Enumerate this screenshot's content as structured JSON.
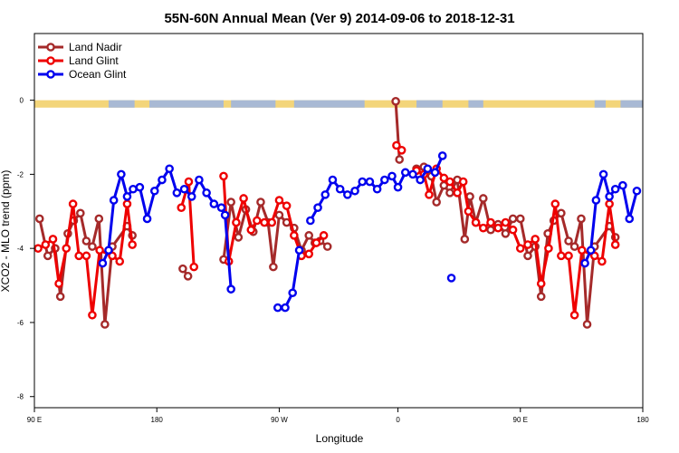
{
  "chart_data": {
    "type": "line",
    "title": "55N-60N Annual Mean (Ver 9)   2014-09-06 to 2018-12-31",
    "xlabel": "Longitude",
    "ylabel": "XCO2 - MLO trend (ppm)",
    "xlim": [
      0,
      8.2
    ],
    "ylim": [
      -8.3,
      1.8
    ],
    "x_ticks": [
      {
        "value": 0,
        "label": "90 E"
      },
      {
        "value": 1.65,
        "label": "180"
      },
      {
        "value": 3.3,
        "label": "90 W"
      },
      {
        "value": 4.9,
        "label": "0"
      },
      {
        "value": 6.55,
        "label": "90 E"
      },
      {
        "value": 8.2,
        "label": "180"
      }
    ],
    "y_ticks": [
      0,
      -2,
      -4,
      -6,
      -8
    ],
    "y_tick_labels": [
      "0",
      "-2",
      "-4",
      "-6",
      "-8"
    ],
    "legend_position": "top-left",
    "band": {
      "y_top": 0.0,
      "y_bottom": -0.2,
      "land_color": "#f3d57a",
      "ocean_color": "#a8b9d4"
    },
    "series": [
      {
        "name": "Land Nadir",
        "color": "#a52a2a",
        "segments": [
          [
            [
              0.07,
              -3.2
            ],
            [
              0.18,
              -4.2
            ],
            [
              0.28,
              -4.0
            ],
            [
              0.35,
              -5.3
            ],
            [
              0.45,
              -3.6
            ],
            [
              0.53,
              -3.25
            ],
            [
              0.62,
              -3.05
            ],
            [
              0.7,
              -3.8
            ],
            [
              0.78,
              -3.95
            ],
            [
              0.87,
              -3.2
            ],
            [
              0.95,
              -6.05
            ],
            [
              1.05,
              -3.95
            ],
            [
              1.25,
              -3.4
            ],
            [
              1.32,
              -3.65
            ]
          ],
          [
            [
              2.0,
              -4.55
            ],
            [
              2.07,
              -4.75
            ]
          ],
          [
            [
              2.55,
              -4.3
            ],
            [
              2.65,
              -2.75
            ],
            [
              2.75,
              -3.7
            ],
            [
              2.85,
              -2.95
            ],
            [
              2.95,
              -3.55
            ],
            [
              3.05,
              -2.75
            ],
            [
              3.15,
              -3.3
            ],
            [
              3.22,
              -4.5
            ],
            [
              3.3,
              -3.1
            ],
            [
              3.4,
              -3.3
            ],
            [
              3.5,
              -3.45
            ],
            [
              3.6,
              -4.05
            ],
            [
              3.7,
              -3.65
            ],
            [
              3.78,
              -3.85
            ],
            [
              3.85,
              -3.8
            ],
            [
              3.95,
              -3.95
            ]
          ],
          [
            [
              4.87,
              -0.03
            ],
            [
              4.92,
              -1.6
            ]
          ],
          [
            [
              5.15,
              -1.85
            ],
            [
              5.25,
              -1.8
            ],
            [
              5.35,
              -2.05
            ],
            [
              5.42,
              -2.75
            ],
            [
              5.52,
              -2.3
            ],
            [
              5.6,
              -2.5
            ],
            [
              5.7,
              -2.15
            ],
            [
              5.8,
              -3.75
            ],
            [
              5.87,
              -2.6
            ],
            [
              5.95,
              -3.3
            ],
            [
              6.05,
              -2.65
            ],
            [
              6.15,
              -3.5
            ],
            [
              6.25,
              -3.35
            ],
            [
              6.35,
              -3.6
            ],
            [
              6.45,
              -3.2
            ],
            [
              6.55,
              -3.2
            ],
            [
              6.65,
              -4.2
            ],
            [
              6.75,
              -3.95
            ],
            [
              6.83,
              -5.3
            ],
            [
              6.92,
              -3.6
            ],
            [
              7.0,
              -3.25
            ],
            [
              7.1,
              -3.05
            ],
            [
              7.2,
              -3.8
            ],
            [
              7.28,
              -3.95
            ],
            [
              7.37,
              -3.2
            ],
            [
              7.45,
              -6.05
            ],
            [
              7.55,
              -3.95
            ],
            [
              7.75,
              -3.4
            ],
            [
              7.83,
              -3.7
            ]
          ]
        ]
      },
      {
        "name": "Land Glint",
        "color": "#ee0000",
        "segments": [
          [
            [
              0.05,
              -4.0
            ],
            [
              0.15,
              -3.9
            ],
            [
              0.25,
              -3.75
            ],
            [
              0.33,
              -4.95
            ],
            [
              0.43,
              -4.0
            ],
            [
              0.52,
              -2.8
            ],
            [
              0.6,
              -4.2
            ],
            [
              0.7,
              -4.2
            ],
            [
              0.78,
              -5.8
            ],
            [
              0.88,
              -4.05
            ],
            [
              1.05,
              -4.2
            ],
            [
              1.15,
              -4.35
            ],
            [
              1.25,
              -2.8
            ],
            [
              1.32,
              -3.9
            ]
          ],
          [
            [
              1.98,
              -2.9
            ],
            [
              2.08,
              -2.2
            ],
            [
              2.15,
              -4.5
            ]
          ],
          [
            [
              2.55,
              -2.05
            ],
            [
              2.62,
              -4.35
            ],
            [
              2.72,
              -3.3
            ],
            [
              2.82,
              -2.65
            ],
            [
              2.92,
              -3.5
            ],
            [
              3.0,
              -3.25
            ],
            [
              3.1,
              -3.3
            ],
            [
              3.2,
              -3.3
            ],
            [
              3.3,
              -2.7
            ],
            [
              3.4,
              -2.85
            ],
            [
              3.5,
              -3.65
            ],
            [
              3.6,
              -4.2
            ],
            [
              3.7,
              -4.15
            ],
            [
              3.8,
              -3.85
            ],
            [
              3.9,
              -3.65
            ]
          ],
          [
            [
              4.88,
              -1.22
            ],
            [
              4.95,
              -1.35
            ]
          ],
          [
            [
              5.15,
              -1.9
            ],
            [
              5.25,
              -2.0
            ],
            [
              5.32,
              -2.55
            ],
            [
              5.42,
              -1.85
            ],
            [
              5.52,
              -2.1
            ],
            [
              5.6,
              -2.2
            ],
            [
              5.7,
              -2.5
            ],
            [
              5.78,
              -2.2
            ],
            [
              5.85,
              -3.0
            ],
            [
              5.95,
              -3.3
            ],
            [
              6.05,
              -3.45
            ],
            [
              6.15,
              -3.3
            ],
            [
              6.25,
              -3.45
            ],
            [
              6.35,
              -3.3
            ],
            [
              6.45,
              -3.5
            ],
            [
              6.55,
              -4.0
            ],
            [
              6.65,
              -3.9
            ],
            [
              6.75,
              -3.75
            ],
            [
              6.83,
              -4.95
            ],
            [
              6.93,
              -4.0
            ],
            [
              7.02,
              -2.8
            ],
            [
              7.1,
              -4.2
            ],
            [
              7.2,
              -4.2
            ],
            [
              7.28,
              -5.8
            ],
            [
              7.38,
              -4.05
            ],
            [
              7.55,
              -4.2
            ],
            [
              7.65,
              -4.35
            ],
            [
              7.75,
              -2.8
            ],
            [
              7.83,
              -3.9
            ]
          ]
        ]
      },
      {
        "name": "Ocean Glint",
        "color": "#0000ee",
        "segments": [
          [
            [
              0.92,
              -4.4
            ],
            [
              1.0,
              -4.05
            ],
            [
              1.07,
              -2.7
            ],
            [
              1.17,
              -2.0
            ],
            [
              1.25,
              -2.6
            ],
            [
              1.33,
              -2.4
            ],
            [
              1.42,
              -2.35
            ],
            [
              1.52,
              -3.2
            ],
            [
              1.62,
              -2.45
            ],
            [
              1.72,
              -2.15
            ],
            [
              1.82,
              -1.85
            ],
            [
              1.92,
              -2.5
            ],
            [
              2.02,
              -2.4
            ],
            [
              2.12,
              -2.6
            ],
            [
              2.22,
              -2.15
            ],
            [
              2.32,
              -2.5
            ],
            [
              2.42,
              -2.8
            ],
            [
              2.52,
              -2.9
            ],
            [
              2.57,
              -3.1
            ],
            [
              2.65,
              -5.1
            ]
          ],
          [
            [
              3.28,
              -5.6
            ],
            [
              3.38,
              -5.6
            ],
            [
              3.48,
              -5.2
            ],
            [
              3.57,
              -4.05
            ]
          ],
          [
            [
              3.72,
              -3.25
            ],
            [
              3.82,
              -2.9
            ],
            [
              3.92,
              -2.55
            ],
            [
              4.02,
              -2.15
            ],
            [
              4.12,
              -2.4
            ],
            [
              4.22,
              -2.55
            ],
            [
              4.32,
              -2.45
            ],
            [
              4.42,
              -2.2
            ],
            [
              4.52,
              -2.2
            ],
            [
              4.62,
              -2.4
            ],
            [
              4.72,
              -2.15
            ],
            [
              4.82,
              -2.05
            ],
            [
              4.9,
              -2.35
            ],
            [
              5.0,
              -1.95
            ],
            [
              5.1,
              -2.0
            ],
            [
              5.2,
              -2.15
            ],
            [
              5.3,
              -1.85
            ],
            [
              5.4,
              -1.95
            ],
            [
              5.5,
              -1.5
            ]
          ],
          [
            [
              5.62,
              -4.8
            ]
          ],
          [
            [
              7.42,
              -4.4
            ],
            [
              7.5,
              -4.05
            ],
            [
              7.57,
              -2.7
            ],
            [
              7.67,
              -2.0
            ],
            [
              7.75,
              -2.6
            ],
            [
              7.83,
              -2.4
            ],
            [
              7.93,
              -2.3
            ],
            [
              8.02,
              -3.2
            ],
            [
              8.12,
              -2.45
            ]
          ]
        ]
      }
    ]
  }
}
